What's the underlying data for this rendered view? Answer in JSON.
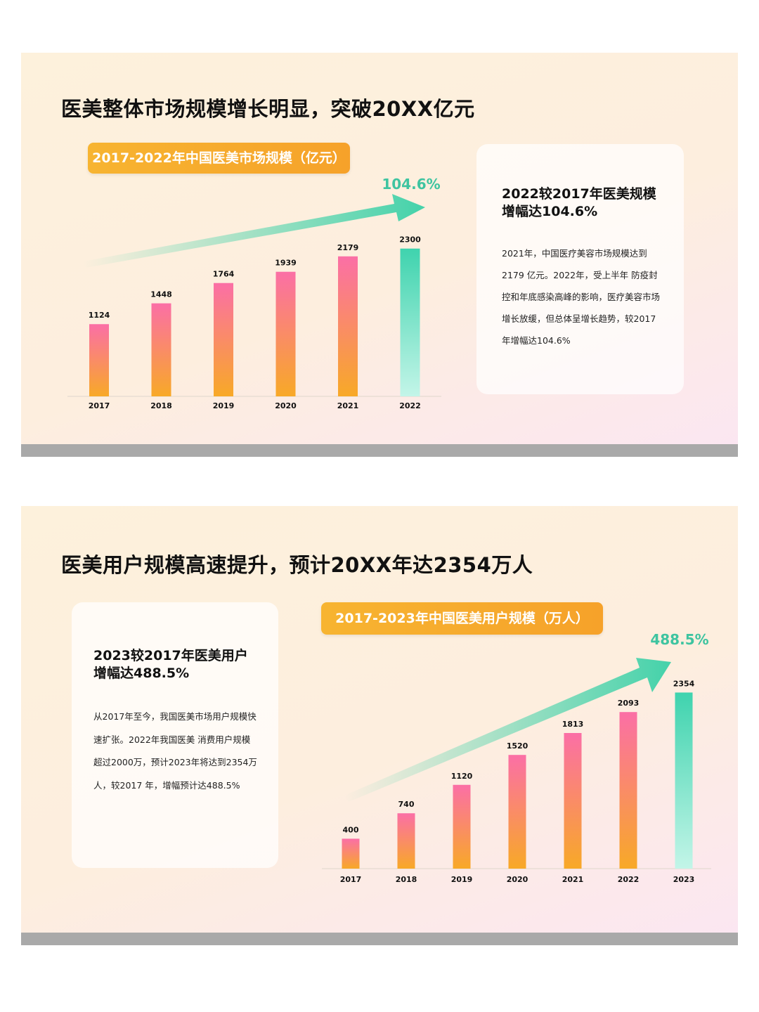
{
  "slide1": {
    "title": "医美整体市场规模增长明显，突破20XX亿元",
    "pill": "2017-2022年中国医美市场规模（亿元）",
    "card_heading": "2022较2017年医美规模增幅达104.6%",
    "card_body": "2021年，中国医疗美容市场规模达到2179 亿元。2022年，受上半年 防疫封控和年底感染高峰的影响，医疗美容市场增长放缓，但总体呈增长趋势，较2017年增幅达104.6%",
    "chart_data": {
      "type": "bar",
      "title": "2017-2022年中国医美市场规模（亿元）",
      "categories": [
        "2017",
        "2018",
        "2019",
        "2020",
        "2021",
        "2022"
      ],
      "values": [
        1124,
        1448,
        1764,
        1939,
        2179,
        2300
      ],
      "ylim": [
        0,
        2450
      ],
      "grid": false,
      "annotation": "104.6%",
      "highlight_last": true
    }
  },
  "slide2": {
    "title": "医美用户规模高速提升，预计20XX年达2354万人",
    "pill": "2017-2023年中国医美用户规模（万人）",
    "card_heading": "2023较2017年医美用户增幅达488.5%",
    "card_body": "从2017年至今，我国医美市场用户规模快速扩张。2022年我国医美 消费用户规模超过2000万，预计2023年将达到2354万人，较2017 年，增幅预计达488.5%",
    "chart_data": {
      "type": "bar",
      "title": "2017-2023年中国医美用户规模（万人）",
      "categories": [
        "2017",
        "2018",
        "2019",
        "2020",
        "2021",
        "2022",
        "2023"
      ],
      "values": [
        400,
        740,
        1120,
        1520,
        1813,
        2093,
        2354
      ],
      "ylim": [
        0,
        2480
      ],
      "grid": false,
      "annotation": "488.5%",
      "highlight_last": true
    }
  },
  "colors": {
    "bar_top": "#fb6fa6",
    "bar_bottom": "#f8a927",
    "highlight_top": "#3fd3ae",
    "highlight_bottom": "#b9f3e4",
    "arrow": "#44d2aa",
    "pill": "#f6a82b",
    "footer_bar": "#a9a9a9"
  }
}
